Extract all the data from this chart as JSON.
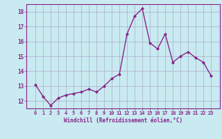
{
  "x": [
    0,
    1,
    2,
    3,
    4,
    5,
    6,
    7,
    8,
    9,
    10,
    11,
    12,
    13,
    14,
    15,
    16,
    17,
    18,
    19,
    20,
    21,
    22,
    23
  ],
  "y": [
    13.1,
    12.3,
    11.7,
    12.2,
    12.4,
    12.5,
    12.6,
    12.8,
    12.6,
    13.0,
    13.5,
    13.8,
    16.5,
    17.7,
    18.2,
    15.9,
    15.5,
    16.5,
    14.6,
    15.0,
    15.3,
    14.9,
    14.6,
    13.7
  ],
  "line_color": "#882288",
  "marker": "D",
  "marker_size": 2,
  "bg_color": "#c8eaf0",
  "grid_color": "#aaaacc",
  "xlabel": "Windchill (Refroidissement éolien,°C)",
  "xlabel_color": "#882288",
  "tick_color": "#882288",
  "ylim": [
    11.5,
    18.5
  ],
  "yticks": [
    12,
    13,
    14,
    15,
    16,
    17,
    18
  ],
  "xticks": [
    0,
    1,
    2,
    3,
    4,
    5,
    6,
    7,
    8,
    9,
    10,
    11,
    12,
    13,
    14,
    15,
    16,
    17,
    18,
    19,
    20,
    21,
    22,
    23
  ],
  "line_width": 1.0,
  "tick_fontsize": 5.0,
  "ytick_fontsize": 5.5,
  "xlabel_fontsize": 5.5
}
